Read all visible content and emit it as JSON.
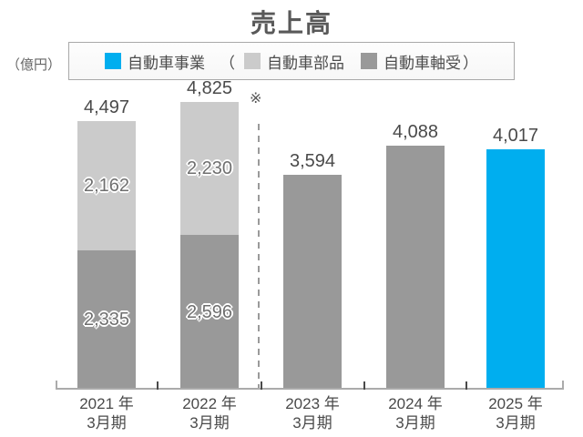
{
  "title": "売上高",
  "unit_label": "（億円）",
  "note_marker": "※",
  "colors": {
    "accent_blue": "#00AEEF",
    "light_gray": "#CBCBCB",
    "medium_gray": "#999999",
    "axis_gray": "#ABABAB",
    "text_gray": "#4A4A4A"
  },
  "legend": {
    "open_paren": "（",
    "close_paren": "）",
    "items": [
      {
        "name": "自動車事業",
        "color": "#00AEEF"
      },
      {
        "name": "自動車部品",
        "color": "#CBCBCB"
      },
      {
        "name": "自動車軸受",
        "color": "#999999"
      }
    ]
  },
  "chart_data": {
    "type": "bar",
    "stacked": true,
    "title": "売上高",
    "unit": "億円",
    "xlabel": "",
    "ylabel": "（億円）",
    "ylim": [
      0,
      5000
    ],
    "grid": false,
    "legend_position": "top",
    "annotations": [
      "※ 2022年3月期と2023年3月期の間に破線区切り"
    ],
    "categories": [
      "2021 年 3月期",
      "2022 年 3月期",
      "2023 年 3月期",
      "2024 年 3月期",
      "2025 年 3月期"
    ],
    "bars": [
      {
        "category_line1": "2021 年",
        "category_line2": "3月期",
        "total": 4497,
        "total_label": "4,497",
        "segments": [
          {
            "series": "自動車軸受",
            "value": 2335,
            "label": "2,335",
            "color": "#999999"
          },
          {
            "series": "自動車部品",
            "value": 2162,
            "label": "2,162",
            "color": "#CBCBCB"
          }
        ]
      },
      {
        "category_line1": "2022 年",
        "category_line2": "3月期",
        "total": 4825,
        "total_label": "4,825",
        "segments": [
          {
            "series": "自動車軸受",
            "value": 2596,
            "label": "2,596",
            "color": "#999999"
          },
          {
            "series": "自動車部品",
            "value": 2230,
            "label": "2,230",
            "color": "#CBCBCB"
          }
        ]
      },
      {
        "category_line1": "2023 年",
        "category_line2": "3月期",
        "total": 3594,
        "total_label": "3,594",
        "segments": [
          {
            "series": "自動車事業",
            "value": 3594,
            "label": "",
            "color": "#999999"
          }
        ]
      },
      {
        "category_line1": "2024 年",
        "category_line2": "3月期",
        "total": 4088,
        "total_label": "4,088",
        "segments": [
          {
            "series": "自動車事業",
            "value": 4088,
            "label": "",
            "color": "#999999"
          }
        ]
      },
      {
        "category_line1": "2025 年",
        "category_line2": "3月期",
        "total": 4017,
        "total_label": "4,017",
        "segments": [
          {
            "series": "自動車事業",
            "value": 4017,
            "label": "",
            "color": "#00AEEF"
          }
        ]
      }
    ]
  }
}
